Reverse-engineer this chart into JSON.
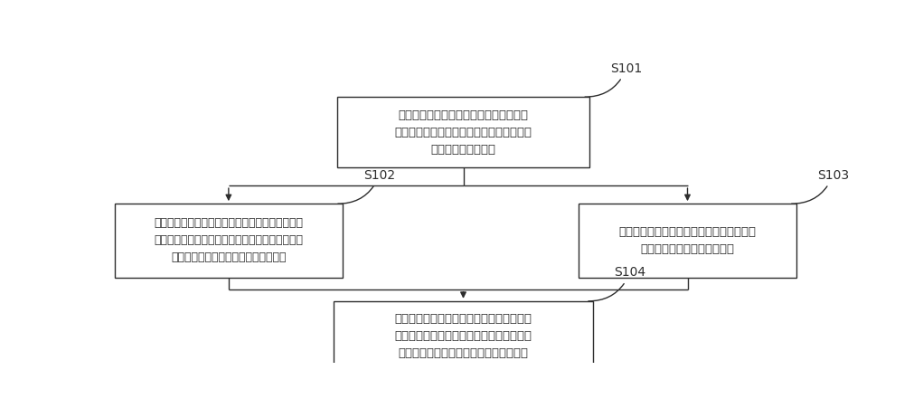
{
  "bg_color": "#ffffff",
  "box_edge_color": "#2d2d2d",
  "box_face_color": "#ffffff",
  "arrow_color": "#2d2d2d",
  "text_color": "#2d2d2d",
  "s101_text": "获取样本数据，并对所述样本数据进行标\n定，根据标定后的样本数据建立量化影响模\n型，并对其进行训练",
  "s102_text": "将待分析的实时数据输入至第一量化影响模型，对\n各算法模型进行评分，根据评分结果，获取最佳模\n型，通过最佳模型获取第一影响量化值",
  "s103_text": "将待分析的实时数据输入至所述第二量化影\n响模型，获取第二影响量化值",
  "s104_text": "根据样本数据量和业务需求选择第一量化影\n响模型或第二量化影响模型，获取影响量化\n值，完成量化特征指标对标签影响的分析",
  "s101_label": "S101",
  "s102_label": "S102",
  "s103_label": "S103",
  "s104_label": "S104",
  "font_size": 9.5,
  "label_font_size": 10
}
